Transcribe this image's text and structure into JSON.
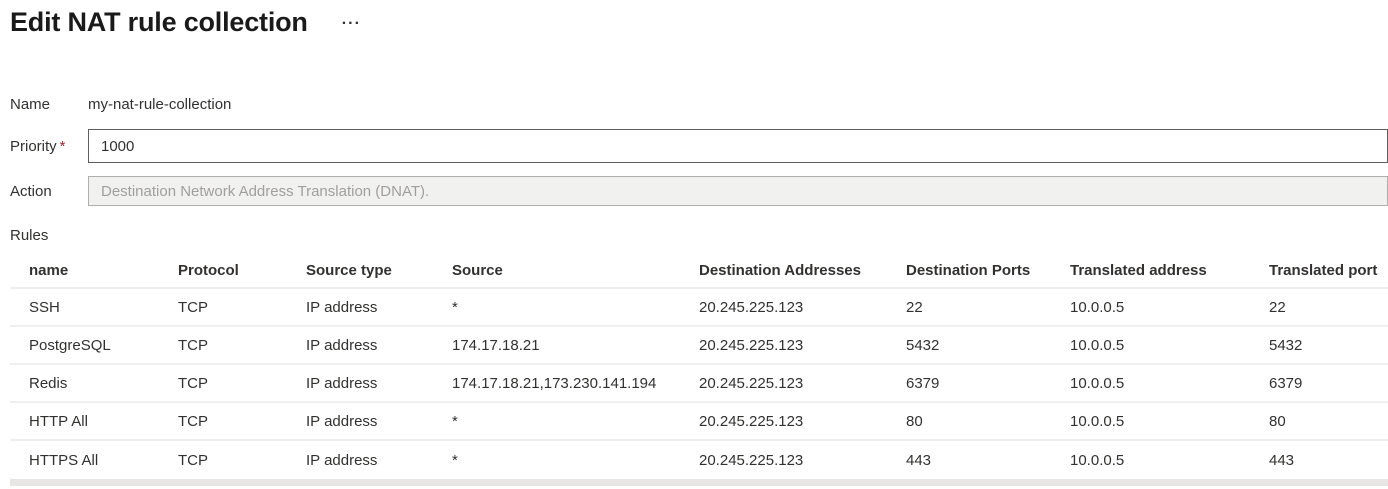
{
  "page": {
    "title": "Edit NAT rule collection",
    "more_icon": "..."
  },
  "form": {
    "name": {
      "label": "Name",
      "value": "my-nat-rule-collection"
    },
    "priority": {
      "label": "Priority",
      "required_marker": "*",
      "value": "1000"
    },
    "action": {
      "label": "Action",
      "placeholder": "Destination Network Address Translation (DNAT)."
    },
    "rules_label": "Rules"
  },
  "rules_table": {
    "columns": [
      "name",
      "Protocol",
      "Source type",
      "Source",
      "Destination Addresses",
      "Destination Ports",
      "Translated address",
      "Translated port"
    ],
    "rows": [
      [
        "SSH",
        "TCP",
        "IP address",
        "*",
        "20.245.225.123",
        "22",
        "10.0.0.5",
        "22"
      ],
      [
        "PostgreSQL",
        "TCP",
        "IP address",
        "174.17.18.21",
        "20.245.225.123",
        "5432",
        "10.0.0.5",
        "5432"
      ],
      [
        "Redis",
        "TCP",
        "IP address",
        "174.17.18.21,173.230.141.194",
        "20.245.225.123",
        "6379",
        "10.0.0.5",
        "6379"
      ],
      [
        "HTTP All",
        "TCP",
        "IP address",
        "*",
        "20.245.225.123",
        "80",
        "10.0.0.5",
        "80"
      ],
      [
        "HTTPS All",
        "TCP",
        "IP address",
        "*",
        "20.245.225.123",
        "443",
        "10.0.0.5",
        "443"
      ]
    ]
  },
  "colors": {
    "text": "#323130",
    "title": "#1a1a1a",
    "required": "#a4262c",
    "input_border": "#605e5c",
    "disabled_bg": "#f1f1f0",
    "separator": "#f0efed",
    "bottom_bar": "#e8e6e4"
  }
}
